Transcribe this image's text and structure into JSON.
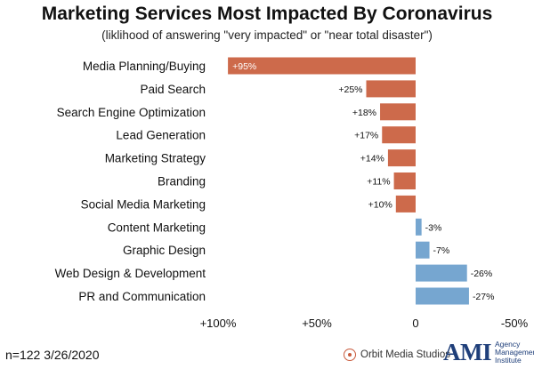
{
  "chart_data": {
    "type": "bar",
    "orientation": "horizontal",
    "title": "Marketing Services Most Impacted By Coronavirus",
    "subtitle": "(liklihood of answering \"very impacted\" or \"near total disaster\")",
    "categories": [
      "Media Planning/Buying",
      "Paid Search",
      "Search Engine Optimization",
      "Lead Generation",
      "Marketing Strategy",
      "Branding",
      "Social Media Marketing",
      "Content Marketing",
      "Graphic Design",
      "Web Design & Development",
      "PR and Communication"
    ],
    "values": [
      95,
      25,
      18,
      17,
      14,
      11,
      10,
      -3,
      -7,
      -26,
      -27
    ],
    "value_labels": [
      "+95%",
      "+25%",
      "+18%",
      "+17%",
      "+14%",
      "+11%",
      "+10%",
      "-3%",
      "-7%",
      "-26%",
      "-27%"
    ],
    "x_ticks": [
      100,
      50,
      0,
      -50
    ],
    "x_tick_labels": [
      "+100%",
      "+50%",
      "0",
      "-50%"
    ],
    "xlim": [
      100,
      -50
    ],
    "x_reversed": true,
    "grid": false,
    "colors": {
      "positive": "#cd6a4b",
      "negative": "#76a6d0"
    }
  },
  "footer": {
    "note": "n=122  3/26/2020",
    "logo_orbit": "Orbit Media Studios",
    "logo_ami_mark": "AMI",
    "logo_ami_lines": [
      "Agency",
      "Management",
      "Institute"
    ]
  }
}
